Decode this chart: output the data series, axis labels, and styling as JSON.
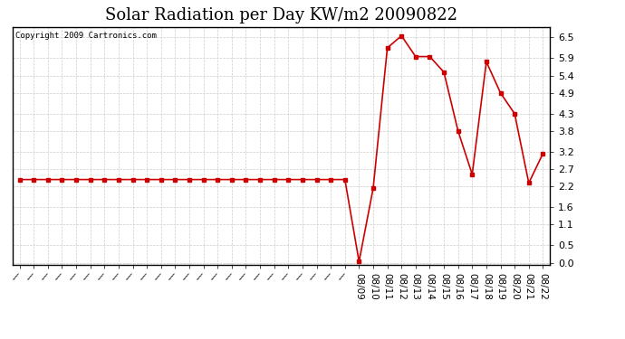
{
  "title": "Solar Radiation per Day KW/m2 20090822",
  "copyright": "Copyright 2009 Cartronics.com",
  "x_labels_dated": [
    "08/09",
    "08/10",
    "08/11",
    "08/12",
    "08/13",
    "08/14",
    "08/15",
    "08/16",
    "08/17",
    "08/18",
    "08/19",
    "08/20",
    "08/21",
    "08/22"
  ],
  "y_values": [
    2.4,
    2.4,
    2.4,
    2.4,
    2.4,
    2.4,
    2.4,
    2.4,
    2.4,
    2.4,
    2.4,
    2.4,
    2.4,
    2.4,
    2.4,
    2.4,
    2.4,
    2.4,
    2.4,
    2.4,
    2.4,
    2.4,
    2.4,
    2.4,
    0.03,
    2.15,
    6.2,
    6.55,
    5.95,
    5.95,
    5.5,
    3.8,
    2.55,
    5.8,
    4.9,
    4.3,
    2.3,
    3.15
  ],
  "line_color": "#cc0000",
  "marker_color": "#cc0000",
  "bg_color": "#ffffff",
  "grid_color": "#cccccc",
  "yticks": [
    0.0,
    0.5,
    1.1,
    1.6,
    2.2,
    2.7,
    3.2,
    3.8,
    4.3,
    4.9,
    5.4,
    5.9,
    6.5
  ],
  "ylim": [
    -0.05,
    6.8
  ],
  "num_before": 24
}
